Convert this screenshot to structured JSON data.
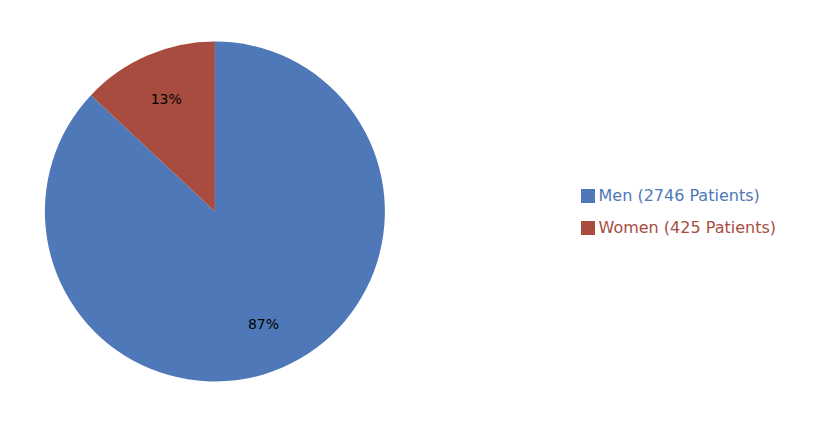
{
  "chart_data": {
    "type": "pie",
    "categories": [
      "Men (2746 Patients)",
      "Women (425 Patients)"
    ],
    "values": [
      87,
      13
    ],
    "value_labels": [
      "87%",
      "13%"
    ],
    "colors": [
      "#4E78B8",
      "#A84C40"
    ],
    "data_labels": true,
    "legend": "right"
  }
}
